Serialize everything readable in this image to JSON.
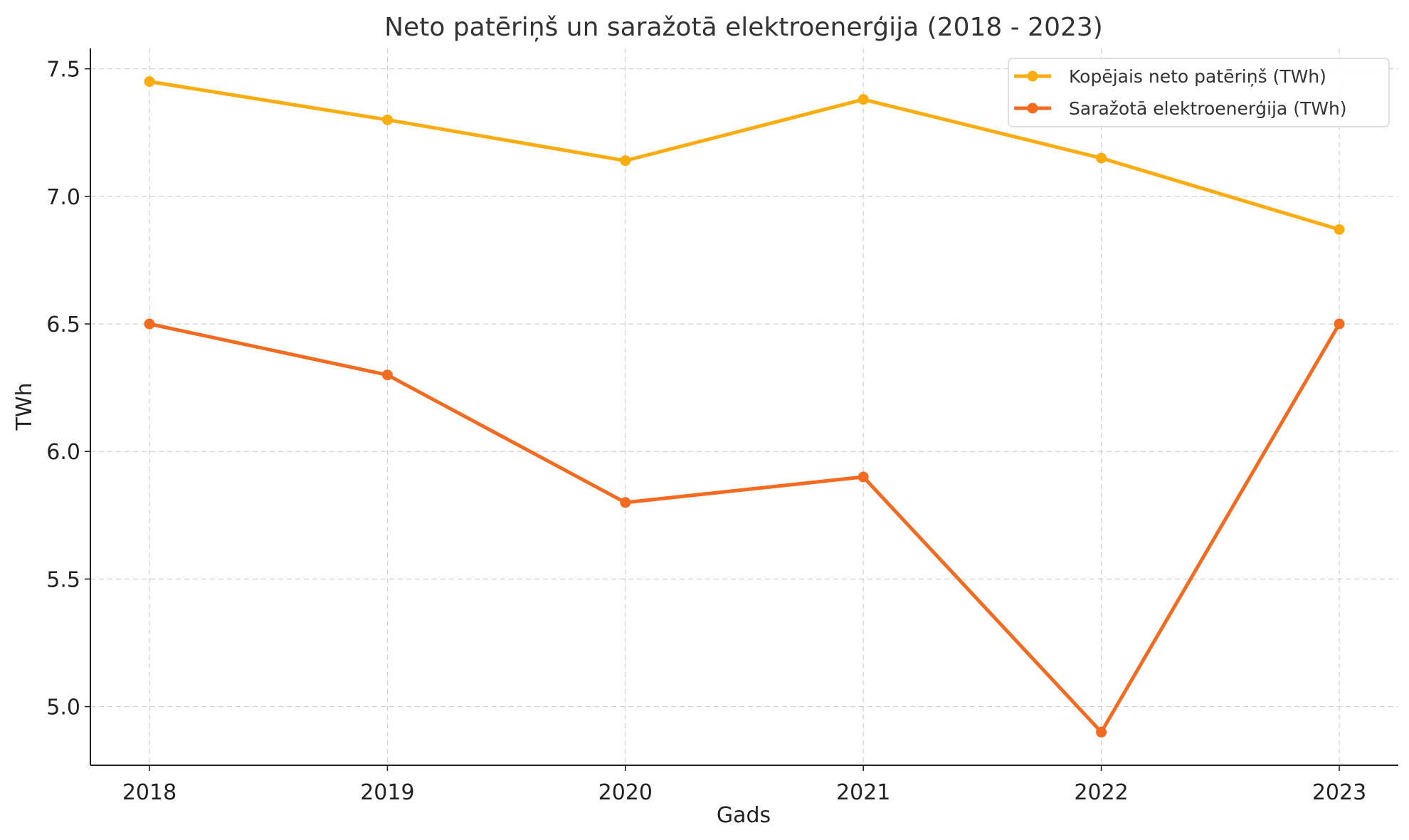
{
  "chart_data": {
    "type": "line",
    "title": "Neto patēriņš un saražotā elektroenerģija (2018 - 2023)",
    "xlabel": "Gads",
    "ylabel": "TWh",
    "categories": [
      "2018",
      "2019",
      "2020",
      "2021",
      "2022",
      "2023"
    ],
    "yticks": [
      "5.0",
      "5.5",
      "6.0",
      "6.5",
      "7.0",
      "7.5"
    ],
    "ylim": [
      4.77,
      7.58
    ],
    "grid": true,
    "legend_position": "top-right",
    "series": [
      {
        "name": "Kopējais neto patēriņš (TWh)",
        "color": "#fbac10",
        "values": [
          7.45,
          7.3,
          7.14,
          7.38,
          7.15,
          6.87
        ]
      },
      {
        "name": "Saražotā elektroenerģija (TWh)",
        "color": "#f26b21",
        "values": [
          6.5,
          6.3,
          5.8,
          5.9,
          4.9,
          6.5
        ]
      }
    ]
  }
}
